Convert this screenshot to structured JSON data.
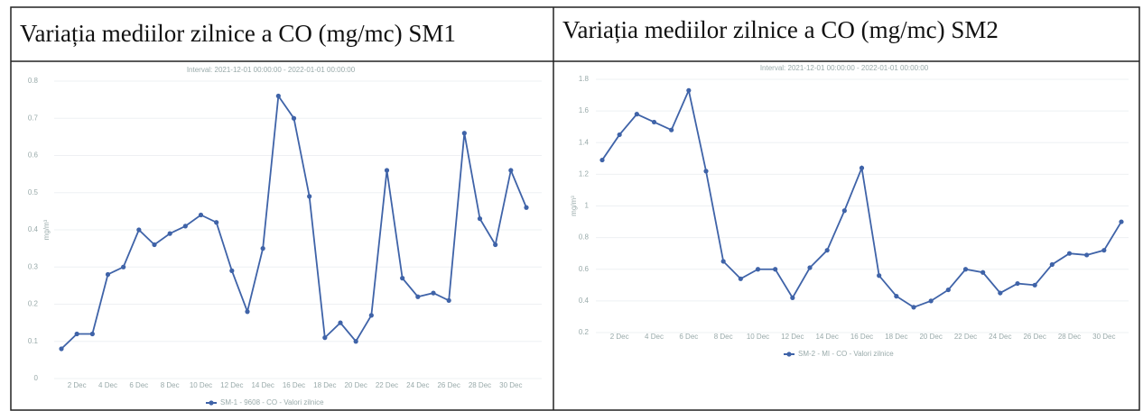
{
  "chart_data": [
    {
      "type": "line",
      "title": "Variația mediilor zilnice a CO (mg/mc) SM1",
      "subtitle": "Interval: 2021-12-01 00:00:00 - 2022-01-01 00:00:00",
      "ylabel": "mg/m³",
      "categories": [
        null,
        "2 Dec",
        null,
        "4 Dec",
        null,
        "6 Dec",
        null,
        "8 Dec",
        null,
        "10 Dec",
        null,
        "12 Dec",
        null,
        "14 Dec",
        null,
        "16 Dec",
        null,
        "18 Dec",
        null,
        "20 Dec",
        null,
        "22 Dec",
        null,
        "24 Dec",
        null,
        "26 Dec",
        null,
        "28 Dec",
        null,
        "30 Dec",
        null
      ],
      "series": [
        {
          "name": "SM-1 - 9608 - CO - Valori zilnice",
          "color": "#3f63a8",
          "values": [
            0.08,
            0.12,
            0.12,
            0.28,
            0.3,
            0.4,
            0.36,
            0.39,
            0.41,
            0.44,
            0.42,
            0.29,
            0.18,
            0.35,
            0.76,
            0.7,
            0.49,
            0.11,
            0.15,
            0.1,
            0.17,
            0.56,
            0.27,
            0.22,
            0.23,
            0.21,
            0.66,
            0.43,
            0.36,
            0.56,
            0.46
          ]
        }
      ],
      "ylim": [
        0,
        0.8
      ],
      "yticks": [
        0,
        0.1,
        0.2,
        0.3,
        0.4,
        0.5,
        0.6,
        0.7,
        0.8
      ],
      "grid": true
    },
    {
      "type": "line",
      "title": "Variația mediilor zilnice a CO (mg/mc) SM2",
      "subtitle": "Interval: 2021-12-01 00:00:00 - 2022-01-01 00:00:00",
      "ylabel": "mg/m³",
      "categories": [
        null,
        "2 Dec",
        null,
        "4 Dec",
        null,
        "6 Dec",
        null,
        "8 Dec",
        null,
        "10 Dec",
        null,
        "12 Dec",
        null,
        "14 Dec",
        null,
        "16 Dec",
        null,
        "18 Dec",
        null,
        "20 Dec",
        null,
        "22 Dec",
        null,
        "24 Dec",
        null,
        "26 Dec",
        null,
        "28 Dec",
        null,
        "30 Dec",
        null
      ],
      "series": [
        {
          "name": "SM-2 - MI - CO - Valori zilnice",
          "color": "#3f63a8",
          "values": [
            1.29,
            1.45,
            1.58,
            1.53,
            1.48,
            1.73,
            1.22,
            0.65,
            0.54,
            0.6,
            0.6,
            0.42,
            0.61,
            0.72,
            0.97,
            1.24,
            0.56,
            0.43,
            0.36,
            0.4,
            0.47,
            0.6,
            0.58,
            0.45,
            0.51,
            0.5,
            0.63,
            0.7,
            0.69,
            0.72,
            0.9
          ]
        }
      ],
      "ylim": [
        0.2,
        1.8
      ],
      "yticks": [
        0.2,
        0.4,
        0.6,
        0.8,
        1,
        1.2,
        1.4,
        1.6,
        1.8
      ],
      "grid": true
    }
  ]
}
